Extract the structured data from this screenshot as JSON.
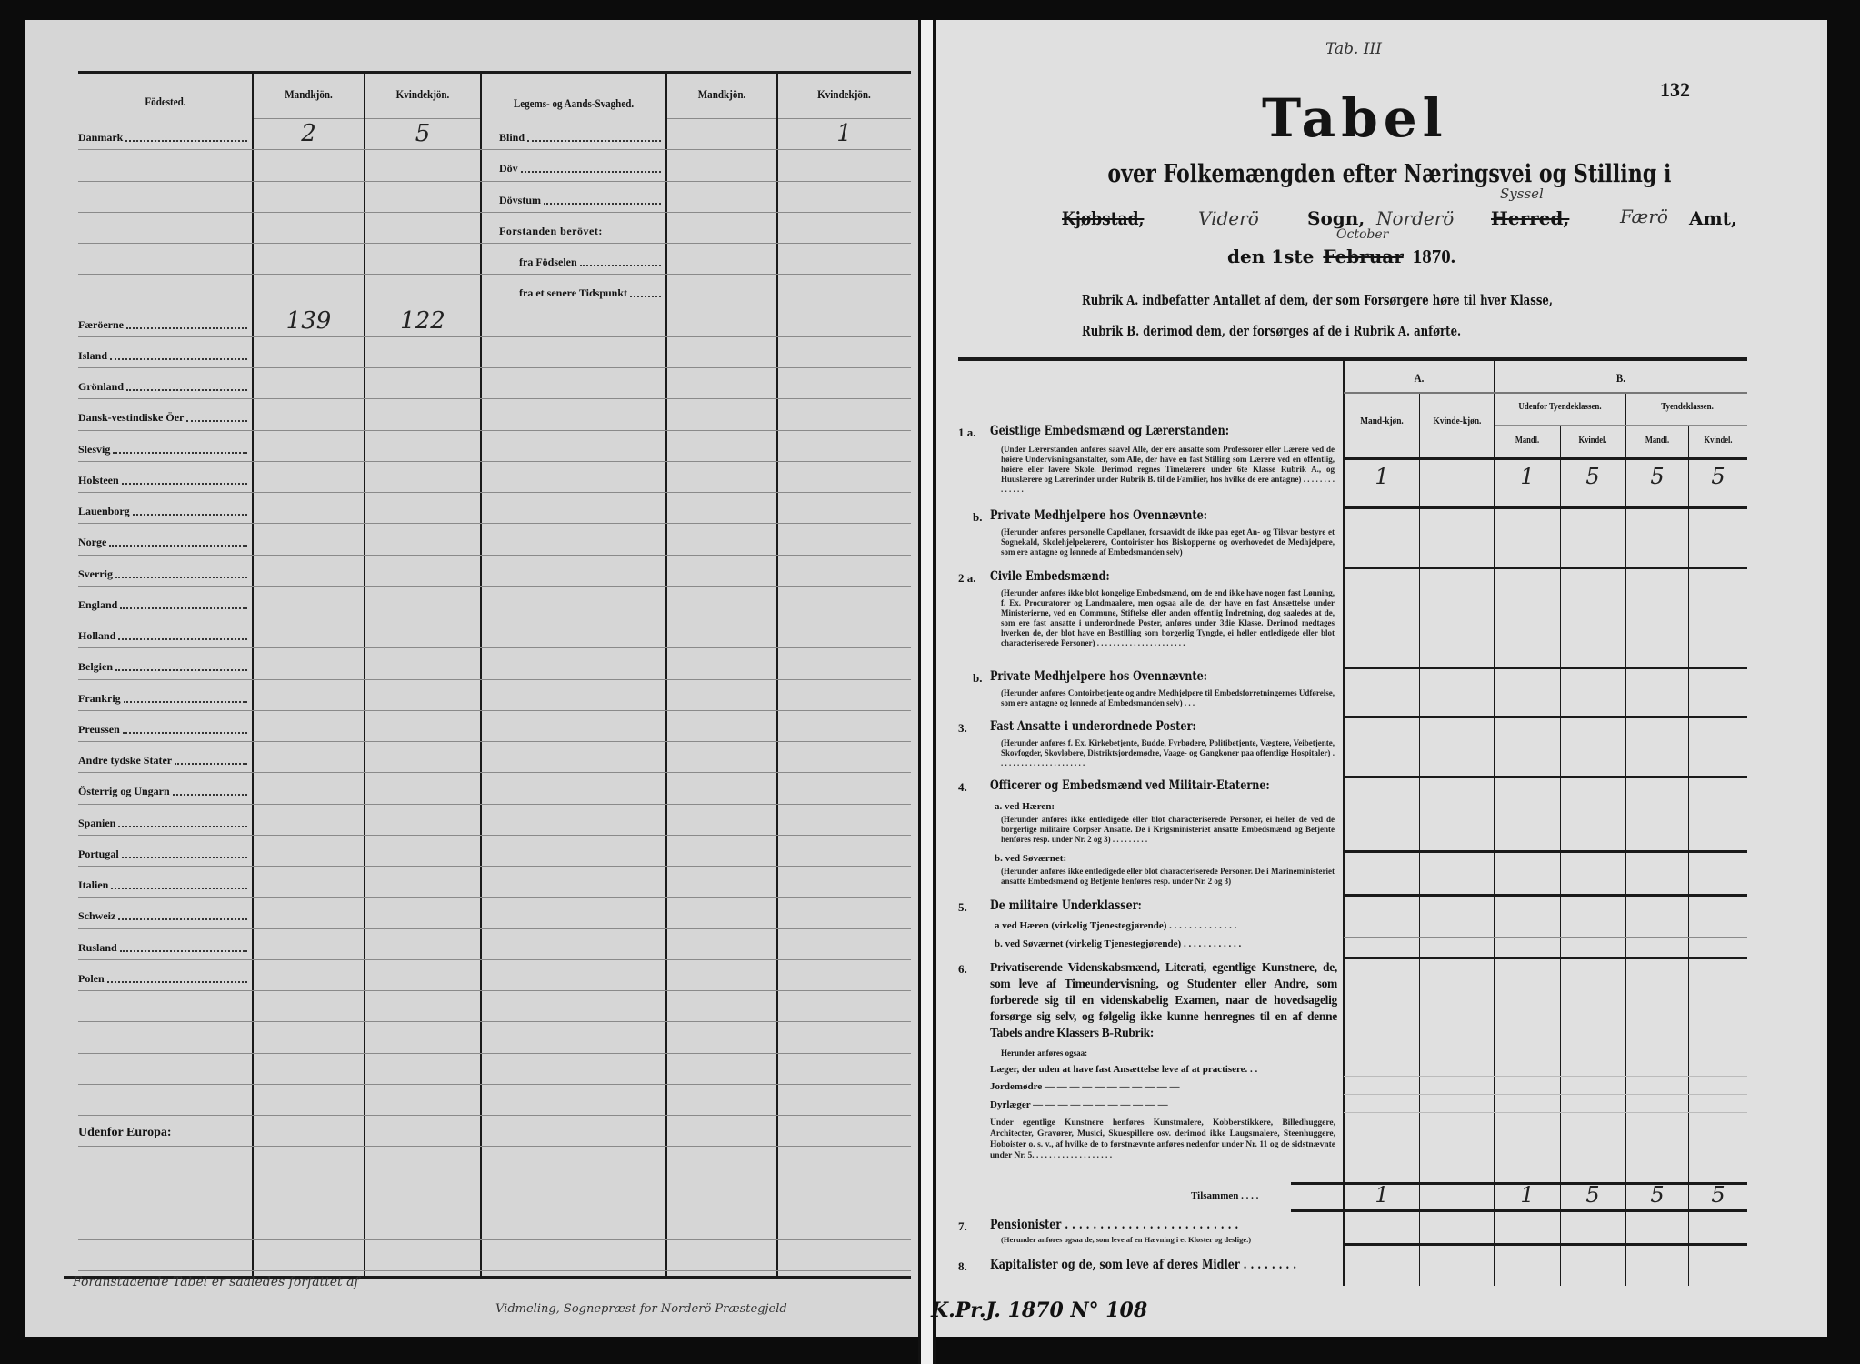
{
  "left": {
    "headers": {
      "birthplace": "Födested.",
      "male1": "Mandkjön.",
      "female1": "Kvindekjön.",
      "infirmity": "Legems- og Aands-Svaghed.",
      "male2": "Mandkjön.",
      "female2": "Kvindekjön."
    },
    "rows": [
      {
        "place": "Danmark",
        "m": "2",
        "k": "5",
        "infirmity": "Blind",
        "ik": "1"
      },
      {
        "infirmity": "Döv"
      },
      {
        "infirmity": "Dövstum"
      },
      {
        "infirmity_heading": "Forstanden berövet:"
      },
      {
        "infirmity_sub": "fra Födselen"
      },
      {
        "infirmity_sub": "fra et senere Tidspunkt"
      },
      {
        "place": "Færöerne",
        "m": "139",
        "k": "122"
      },
      {
        "place": "Island"
      },
      {
        "place": "Grönland"
      },
      {
        "place": "Dansk-vestindiske Öer"
      },
      {
        "place": "Slesvig"
      },
      {
        "place": "Holsteen"
      },
      {
        "place": "Lauenborg"
      },
      {
        "place": "Norge"
      },
      {
        "place": "Sverrig"
      },
      {
        "place": "England"
      },
      {
        "place": "Holland"
      },
      {
        "place": "Belgien"
      },
      {
        "place": "Frankrig"
      },
      {
        "place": "Preussen"
      },
      {
        "place": "Andre tydske Stater"
      },
      {
        "place": "Österrig og Ungarn"
      },
      {
        "place": "Spanien"
      },
      {
        "place": "Portugal"
      },
      {
        "place": "Italien"
      },
      {
        "place": "Schweiz"
      },
      {
        "place": "Rusland"
      },
      {
        "place": "Polen"
      },
      {},
      {},
      {},
      {},
      {
        "place_heading": "Udenfor Europa:"
      },
      {},
      {},
      {},
      {}
    ],
    "footer_note": "Foranstaaende Tabel er saaledes forfattet af",
    "signature": "Vidmeling, Sognepræst for Norderö Præstegjeld"
  },
  "right": {
    "tab_mark": "Tab. III",
    "page_number": "132",
    "title": "Tabel",
    "subtitle": "over Folkemængden efter Næringsvei og Stilling i",
    "place_line": {
      "kjobstad": "Kjøbstad,",
      "parish": "Viderö",
      "sogn": "Sogn,",
      "district": "Norderö",
      "herred": "Herred,",
      "syssel": "Syssel",
      "county": "Færö",
      "amt": "Amt,"
    },
    "date_line": {
      "den": "den 1ste",
      "februar": "Februar",
      "october": "October",
      "year": "1870."
    },
    "rubrik_a": "Rubrik A. indbefatter Antallet af dem, der som Forsørgere høre til hver Klasse,",
    "rubrik_b": "Rubrik B. derimod dem, der forsørges af de i Rubrik A. anførte.",
    "table_headers": {
      "a": "A.",
      "b": "B.",
      "a_male": "Mand-kjøn.",
      "a_female": "Kvinde-kjøn.",
      "b_outside": "Udenfor Tyendeklassen.",
      "b_servants": "Tyendeklassen.",
      "mandl": "Mandl.",
      "kvindel": "Kvindel."
    },
    "rows": {
      "r1a": {
        "num": "1 a.",
        "title": "Geistlige Embedsmænd og Lærerstanden:",
        "desc": "(Under Lærerstanden anføres saavel Alle, der ere ansatte som Professorer eller Lærere ved de høiere Undervisningsanstalter, som Alle, der have en fast Stilling som Lærere ved en offentlig, høiere eller lavere Skole. Derimod regnes Timelærere under 6te Klasse Rubrik A., og Huuslærere og Lærerinder under Rubrik B. til de Familier, hos hvilke de ere antagne) . . . . . . . . . . . . . .",
        "values": [
          "1",
          "",
          "1",
          "5",
          "5",
          "5"
        ]
      },
      "r1b": {
        "num": "b.",
        "title": "Private Medhjelpere hos Ovennævnte:",
        "desc": "(Herunder anføres personelle Capellaner, forsaavidt de ikke paa eget An- og Tilsvar bestyre et Sognekald, Skolehjelpelærere, Contoirister hos Biskopperne og overhovedet de Medhjelpere, som ere antagne og lønnede af Embedsmanden selv)"
      },
      "r2a": {
        "num": "2 a.",
        "title": "Civile Embedsmænd:",
        "desc": "(Herunder anføres ikke blot kongelige Embedsmænd, om de end ikke have nogen fast Lønning, f. Ex. Procuratorer og Landmaalere, men ogsaa alle de, der have en fast Ansættelse under Ministerierne, ved en Commune, Stiftelse eller anden offentlig Indretning, dog saaledes at de, som ere fast ansatte i underordnede Poster, anføres under 3die Klasse. Derimod medtages hverken de, der blot have en Bestilling som borgerlig Tyngde, ei heller entledigede eller blot characteriserede Personer) . . . . . . . . . . . . . . . . . . . . . ."
      },
      "r2b": {
        "num": "b.",
        "title": "Private Medhjelpere hos Ovennævnte:",
        "desc": "(Herunder anføres Contoirbetjente og andre Medhjelpere til Embedsforretningernes Udførelse, som ere antagne og lønnede af Embedsmanden selv) . . ."
      },
      "r3": {
        "num": "3.",
        "title": "Fast Ansatte i underordnede Poster:",
        "desc": "(Herunder anføres f. Ex. Kirkebetjente, Budde, Fyrbødere, Politibetjente, Vægtere, Veibetjente, Skovfogder, Skovløbere, Distriktsjordemødre, Vaage- og Gangkoner paa offentlige Hospitaler) . . . . . . . . . . . . . . . . . . . . . ."
      },
      "r4": {
        "num": "4.",
        "title": "Officerer og Embedsmænd ved Militair-Etaterne:",
        "sub_a": "a. ved Hæren:",
        "desc_a": "(Herunder anføres ikke entledigede eller blot characteriserede Personer, ei heller de ved de borgerlige militaire Corpser Ansatte. De i Krigsministeriet ansatte Embedsmænd og Betjente henføres resp. under Nr. 2 og 3) . . . . . . . . .",
        "sub_b": "b. ved Søværnet:",
        "desc_b": "(Herunder anføres ikke entledigede eller blot characteriserede Personer. De i Marineministeriet ansatte Embedsmænd og Betjente henføres resp. under Nr. 2 og 3)"
      },
      "r5": {
        "num": "5.",
        "title": "De militaire Underklasser:",
        "sub_a": "a  ved Hæren (virkelig Tjenestegjørende) . . . . . . . . . . . . . .",
        "sub_b": "b.  ved Søværnet (virkelig Tjenestegjørende) . . . . . . . . . . . ."
      },
      "r6": {
        "num": "6.",
        "title": "Privatiserende Videnskabsmænd, Literati, egentlige Kunstnere, de, som leve af Timeundervisning, og Studenter eller Andre, som forberede sig til en videnskabelig Examen, naar de hovedsagelig forsørge sig selv, og følgelig ikke kunne henregnes til en af denne Tabels andre Klassers B-Rubrik:",
        "also": "Herunder anføres ogsaa:",
        "doctors": "Læger, der uden at have fast Ansættelse leve af at practisere. . .",
        "midwives": "Jordemødre — — — — — — — — — — —",
        "vets": "Dyrlæger  — — — — — — — — — — —",
        "note": "Under egentlige Kunstnere henføres Kunstmalere, Kobberstikkere, Billedhuggere, Architecter, Gravører, Musici, Skuespillere osv. derimod ikke Laugsmalere, Steenhuggere, Hoboister o. s. v., af hvilke de to førstnævnte anføres nedenfor under Nr. 11 og de sidstnævnte under Nr. 5. . . . . . . . . . . . . . . . . . ."
      },
      "total": {
        "label": "Tilsammen . . . .",
        "values": [
          "1",
          "",
          "1",
          "5",
          "5",
          "5"
        ]
      },
      "r7": {
        "num": "7.",
        "title": "Pensionister . . . . . . . . . . . . . . . . . . . . . . . . .",
        "desc": "(Herunder anføres ogsaa de, som leve af en Hævning i et Kloster og deslige.)"
      },
      "r8": {
        "num": "8.",
        "title": "Kapitalister og de, som leve af deres Midler . . . . . . . ."
      }
    },
    "archive_ref": "K.Pr.J. 1870 N° 108"
  }
}
